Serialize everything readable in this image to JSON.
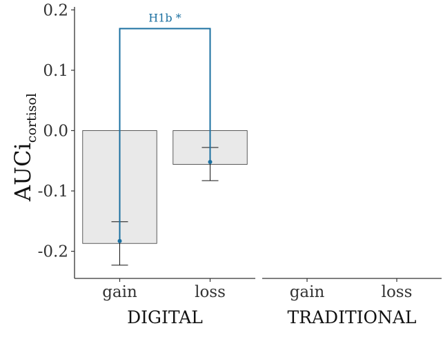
{
  "chart_data": {
    "type": "bar",
    "ylabel": {
      "main": "AUCi",
      "subscript": "cortisol"
    },
    "ylim": [
      -0.245,
      0.205
    ],
    "yticks": [
      0.2,
      0.1,
      0.0,
      -0.1,
      -0.2
    ],
    "ytick_labels": [
      "0.2",
      "0.1",
      "0.0",
      "-0.1",
      "-0.2"
    ],
    "grid": false,
    "bar_fill": "#e9e9e9",
    "bar_stroke": "#333333",
    "accent_color": "#1a6fa0",
    "panels": [
      {
        "facet": "DIGITAL",
        "categories": [
          "gain",
          "loss"
        ],
        "values": [
          -0.187,
          -0.056
        ],
        "error_bars": [
          [
            -0.223,
            -0.151
          ],
          [
            -0.083,
            -0.028
          ]
        ],
        "means": [
          -0.183,
          -0.052
        ],
        "annotation": {
          "text": "H1b *",
          "y": 0.169,
          "from": "gain",
          "to": "loss",
          "drop_to": [
            -0.183,
            -0.052
          ]
        }
      },
      {
        "facet": "TRADITIONAL",
        "categories": [
          "gain",
          "loss"
        ],
        "values": [],
        "error_bars": [],
        "means": []
      }
    ]
  }
}
